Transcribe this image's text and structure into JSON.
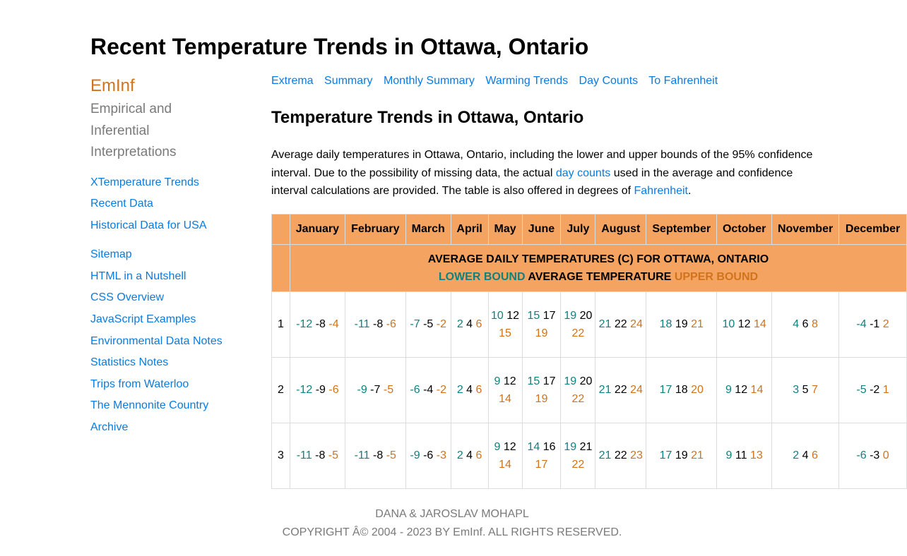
{
  "page": {
    "title": "Recent Temperature Trends in Ottawa, Ontario"
  },
  "sidebar": {
    "brand": "EmInf",
    "tagline": [
      "Empirical and",
      "Inferential",
      "Interpretations"
    ],
    "links1": [
      "XTemperature Trends",
      "Recent Data",
      "Historical Data for USA"
    ],
    "links2": [
      "Sitemap",
      "HTML in a Nutshell",
      "CSS Overview",
      "JavaScript Examples",
      "Environmental Data Notes",
      "Statistics Notes",
      "Trips from Waterloo",
      "The Mennonite Country",
      "Archive"
    ]
  },
  "nav": [
    "Extrema",
    "Summary",
    "Monthly Summary",
    "Warming Trends",
    "Day Counts",
    "To Fahrenheit"
  ],
  "section": {
    "title": "Temperature Trends in Ottawa, Ontario",
    "intro_part1": "Average daily temperatures in Ottawa, Ontario, including the lower and upper bounds of the 95% confidence interval. Due to the possibility of missing data, the actual ",
    "intro_link1": "day counts",
    "intro_part2": " used in the average and confidence interval calculations are provided. The table is also offered in degrees of ",
    "intro_link2": "Fahrenheit",
    "intro_part3": "."
  },
  "table": {
    "months": [
      "January",
      "February",
      "March",
      "April",
      "May",
      "June",
      "July",
      "August",
      "September",
      "October",
      "November",
      "December"
    ],
    "banner_title": "AVERAGE DAILY TEMPERATURES (C) FOR OTTAWA, ONTARIO",
    "label_lower": "LOWER BOUND",
    "label_avg": "AVERAGE TEMPERATURE",
    "label_upper": "UPPER BOUND",
    "rows": [
      {
        "day": "1",
        "cells": [
          [
            "-12",
            "-8",
            "-4"
          ],
          [
            "-11",
            "-8",
            "-6"
          ],
          [
            "-7",
            "-5",
            "-2"
          ],
          [
            "2",
            "4",
            "6"
          ],
          [
            "10",
            "12",
            "15"
          ],
          [
            "15",
            "17",
            "19"
          ],
          [
            "19",
            "20",
            "22"
          ],
          [
            "21",
            "22",
            "24"
          ],
          [
            "18",
            "19",
            "21"
          ],
          [
            "10",
            "12",
            "14"
          ],
          [
            "4",
            "6",
            "8"
          ],
          [
            "-4",
            "-1",
            "2"
          ]
        ]
      },
      {
        "day": "2",
        "cells": [
          [
            "-12",
            "-9",
            "-6"
          ],
          [
            "-9",
            "-7",
            "-5"
          ],
          [
            "-6",
            "-4",
            "-2"
          ],
          [
            "2",
            "4",
            "6"
          ],
          [
            "9",
            "12",
            "14"
          ],
          [
            "15",
            "17",
            "19"
          ],
          [
            "19",
            "20",
            "22"
          ],
          [
            "21",
            "22",
            "24"
          ],
          [
            "17",
            "18",
            "20"
          ],
          [
            "9",
            "12",
            "14"
          ],
          [
            "3",
            "5",
            "7"
          ],
          [
            "-5",
            "-2",
            "1"
          ]
        ]
      },
      {
        "day": "3",
        "cells": [
          [
            "-11",
            "-8",
            "-5"
          ],
          [
            "-11",
            "-8",
            "-5"
          ],
          [
            "-9",
            "-6",
            "-3"
          ],
          [
            "2",
            "4",
            "6"
          ],
          [
            "9",
            "12",
            "14"
          ],
          [
            "14",
            "16",
            "17"
          ],
          [
            "19",
            "21",
            "22"
          ],
          [
            "21",
            "22",
            "23"
          ],
          [
            "17",
            "19",
            "21"
          ],
          [
            "9",
            "11",
            "13"
          ],
          [
            "2",
            "4",
            "6"
          ],
          [
            "-6",
            "-3",
            "0"
          ]
        ]
      }
    ]
  },
  "footer": {
    "line1": "DANA & JAROSLAV MOHAPL",
    "line2": "COPYRIGHT Â© 2004 - 2023 BY EmInf. ALL RIGHTS RESERVED."
  },
  "colors": {
    "header_bg": "#f4a460",
    "lower": "#0f8181",
    "upper": "#d0731c",
    "link": "#0a7be0"
  }
}
